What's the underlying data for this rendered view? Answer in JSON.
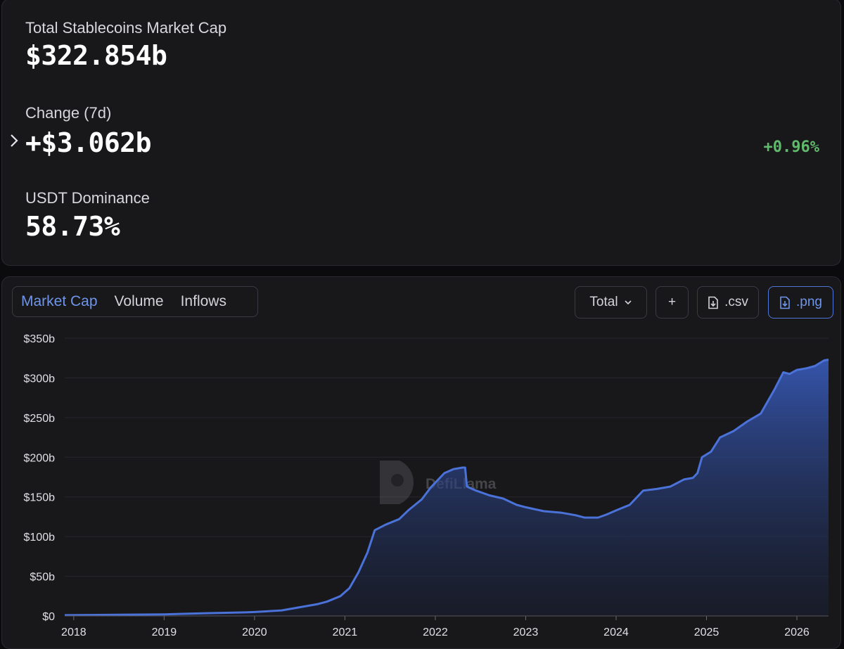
{
  "stats": {
    "market_cap": {
      "label": "Total Stablecoins Market Cap",
      "value": "$322.854b"
    },
    "change": {
      "label": "Change (7d)",
      "value": "+$3.062b",
      "pct": "+0.96%",
      "pct_color": "#5fbb6b"
    },
    "dominance": {
      "label": "USDT Dominance",
      "value": "58.73%"
    }
  },
  "toolbar": {
    "tabs": [
      {
        "label": "Market Cap"
      },
      {
        "label": "Volume"
      },
      {
        "label": "Inflows"
      }
    ],
    "total_select": "Total",
    "add_label": "+",
    "csv_label": ".csv",
    "png_label": ".png"
  },
  "watermark_text": "DefiLlama",
  "colors": {
    "accent": "#4f75d6",
    "line": "#4a72d8",
    "positive": "#5fbb6b"
  },
  "chart_data": {
    "type": "area",
    "title": "",
    "xlabel": "",
    "ylabel": "",
    "ylim": [
      0,
      350
    ],
    "xlim": [
      2017.9,
      2026.35
    ],
    "x_ticks": [
      {
        "value": 2018,
        "label": "2018"
      },
      {
        "value": 2019,
        "label": "2019"
      },
      {
        "value": 2020,
        "label": "2020"
      },
      {
        "value": 2021,
        "label": "2021"
      },
      {
        "value": 2022,
        "label": "2022"
      },
      {
        "value": 2023,
        "label": "2023"
      },
      {
        "value": 2024,
        "label": "2024"
      },
      {
        "value": 2025,
        "label": "2025"
      },
      {
        "value": 2026,
        "label": "2026"
      }
    ],
    "y_ticks": [
      {
        "value": 0,
        "label": "$0"
      },
      {
        "value": 50,
        "label": "$50b"
      },
      {
        "value": 100,
        "label": "$100b"
      },
      {
        "value": 150,
        "label": "$150b"
      },
      {
        "value": 200,
        "label": "$200b"
      },
      {
        "value": 250,
        "label": "$250b"
      },
      {
        "value": 300,
        "label": "$300b"
      },
      {
        "value": 350,
        "label": "$350b"
      }
    ],
    "grid": true,
    "series": [
      {
        "unit": "$b",
        "points": [
          [
            2017.9,
            1
          ],
          [
            2018.5,
            1.5
          ],
          [
            2019.0,
            2
          ],
          [
            2019.5,
            3.5
          ],
          [
            2019.9,
            4.5
          ],
          [
            2020.0,
            5
          ],
          [
            2020.3,
            7
          ],
          [
            2020.5,
            11
          ],
          [
            2020.7,
            15
          ],
          [
            2020.8,
            18
          ],
          [
            2020.95,
            25
          ],
          [
            2021.05,
            35
          ],
          [
            2021.15,
            55
          ],
          [
            2021.25,
            80
          ],
          [
            2021.33,
            108
          ],
          [
            2021.45,
            115
          ],
          [
            2021.6,
            122
          ],
          [
            2021.7,
            133
          ],
          [
            2021.85,
            147
          ],
          [
            2021.95,
            162
          ],
          [
            2022.1,
            180
          ],
          [
            2022.2,
            185
          ],
          [
            2022.3,
            187
          ],
          [
            2022.33,
            187
          ],
          [
            2022.35,
            163
          ],
          [
            2022.45,
            158
          ],
          [
            2022.6,
            152
          ],
          [
            2022.75,
            148
          ],
          [
            2022.9,
            140
          ],
          [
            2023.0,
            137
          ],
          [
            2023.2,
            132
          ],
          [
            2023.4,
            130
          ],
          [
            2023.55,
            127
          ],
          [
            2023.65,
            124
          ],
          [
            2023.8,
            124
          ],
          [
            2023.9,
            128
          ],
          [
            2024.0,
            133
          ],
          [
            2024.15,
            140
          ],
          [
            2024.3,
            158
          ],
          [
            2024.45,
            160
          ],
          [
            2024.6,
            163
          ],
          [
            2024.75,
            172
          ],
          [
            2024.85,
            174
          ],
          [
            2024.9,
            180
          ],
          [
            2024.95,
            200
          ],
          [
            2025.05,
            207
          ],
          [
            2025.15,
            225
          ],
          [
            2025.3,
            233
          ],
          [
            2025.45,
            245
          ],
          [
            2025.6,
            255
          ],
          [
            2025.75,
            285
          ],
          [
            2025.85,
            307
          ],
          [
            2025.92,
            305
          ],
          [
            2026.0,
            310
          ],
          [
            2026.1,
            312
          ],
          [
            2026.2,
            315
          ],
          [
            2026.3,
            322
          ],
          [
            2026.35,
            323
          ]
        ]
      }
    ]
  }
}
